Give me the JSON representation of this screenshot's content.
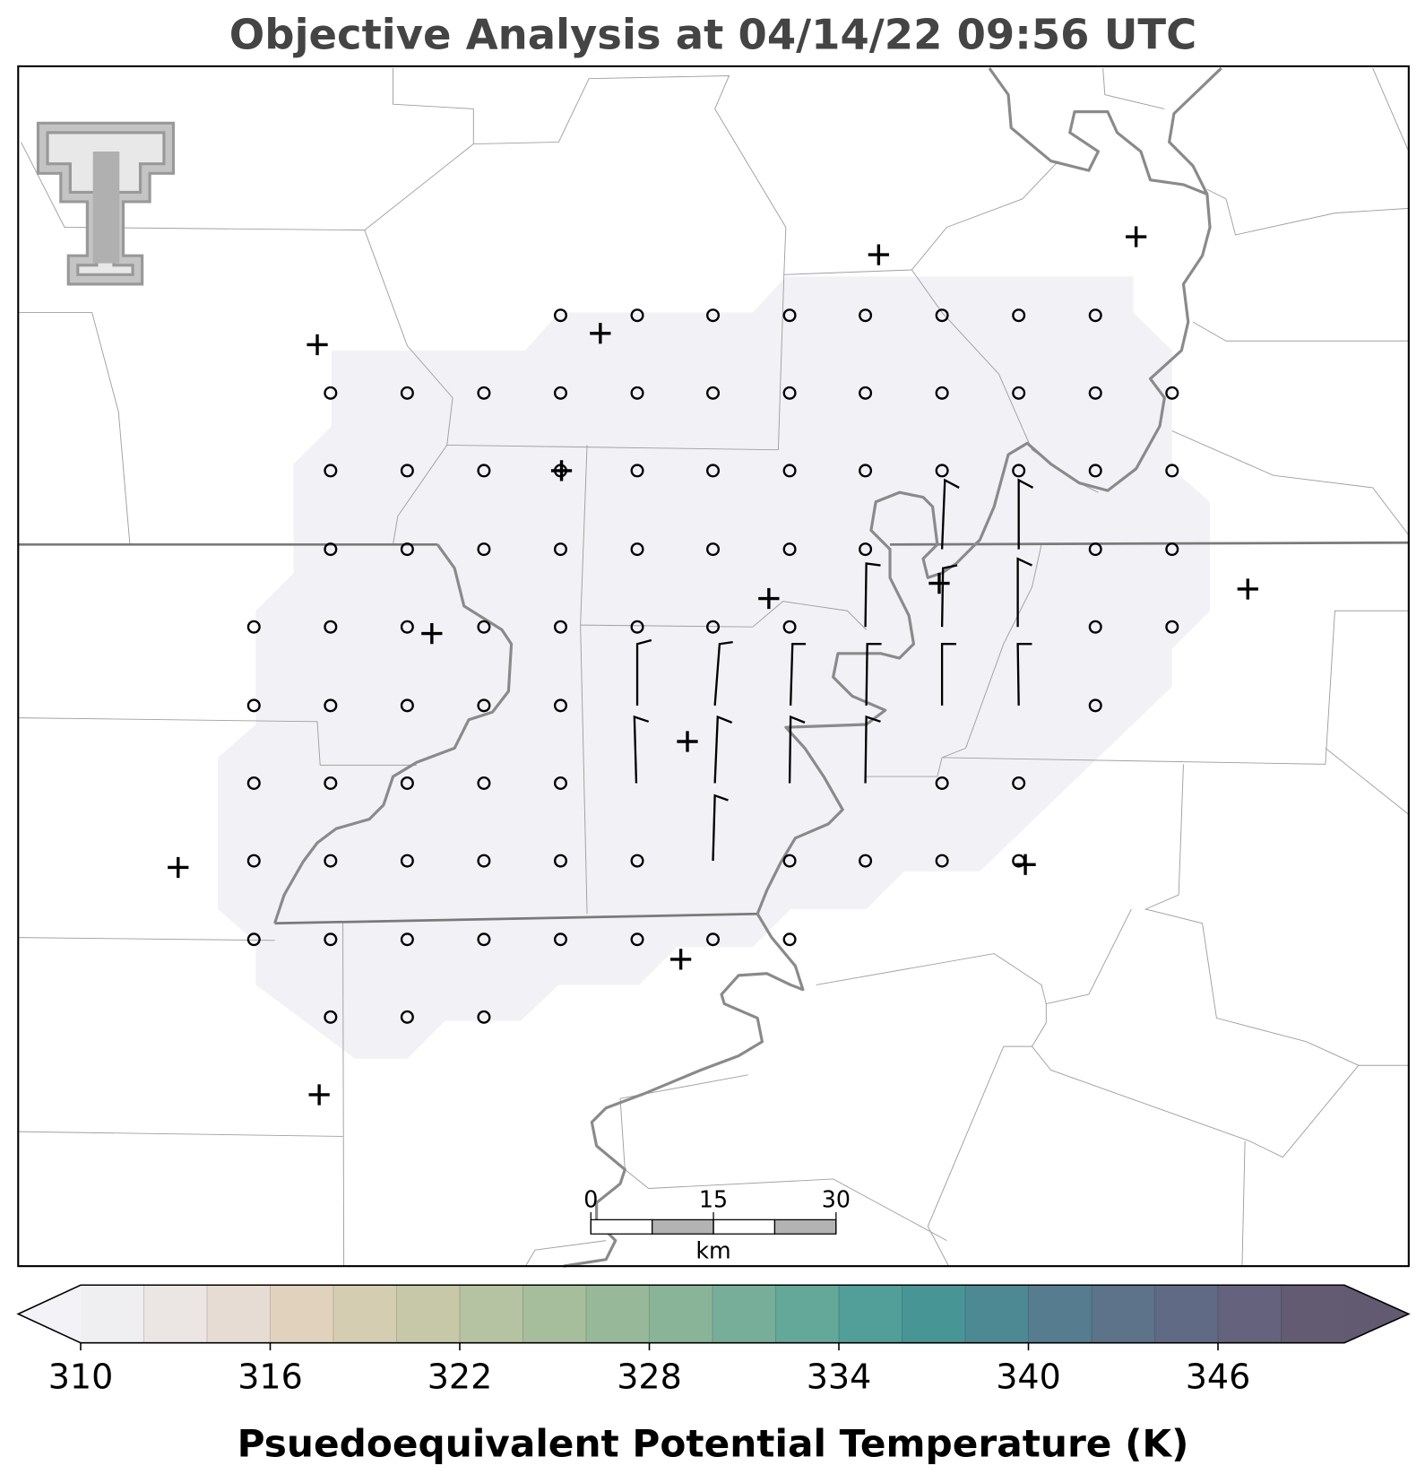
{
  "title": "Objective Analysis at 04/14/22 09:56 UTC",
  "scale_bar": {
    "ticks": [
      0,
      15,
      30
    ],
    "unit": "km"
  },
  "colorbar": {
    "label": "Psuedoequivalent Potential Temperature (K)",
    "lim": [
      310,
      350
    ],
    "ticks": [
      310,
      316,
      322,
      328,
      334,
      340,
      346
    ],
    "under_color": "#f3f2f7",
    "over_color": "#625a70",
    "colors": [
      "#efeef0",
      "#ebe5e3",
      "#e6dcd3",
      "#e1d2bd",
      "#d5cdb1",
      "#c6c8a7",
      "#b6c3a2",
      "#a7be9d",
      "#98b999",
      "#89b498",
      "#77ae99",
      "#63a899",
      "#519f98",
      "#489596",
      "#4d8993",
      "#567d8f",
      "#5c738a",
      "#616a84",
      "#64627c",
      "#625b72"
    ]
  }
}
